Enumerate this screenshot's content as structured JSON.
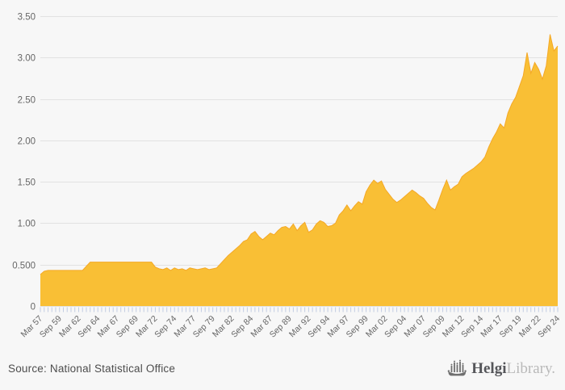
{
  "page": {
    "background": "#f7f7f7"
  },
  "chart_data": {
    "type": "area",
    "title": "",
    "xlabel": "",
    "ylabel": "",
    "grid": true,
    "legend": "none",
    "ylim": [
      0,
      3.5
    ],
    "y_ticks": [
      3.5,
      3.0,
      2.5,
      2.0,
      1.5,
      1.0,
      0.5,
      0
    ],
    "y_tick_labels": [
      "3.50",
      "3.00",
      "2.50",
      "2.00",
      "1.50",
      "1.00",
      "0.500",
      "0"
    ],
    "x_tick_labels": [
      "Mar 57",
      "Sep 59",
      "Mar 62",
      "Sep 64",
      "Mar 67",
      "Sep 69",
      "Mar 72",
      "Sep 74",
      "Mar 77",
      "Sep 79",
      "Mar 82",
      "Sep 84",
      "Mar 87",
      "Sep 89",
      "Mar 92",
      "Sep 94",
      "Mar 97",
      "Sep 99",
      "Mar 02",
      "Sep 04",
      "Mar 07",
      "Sep 09",
      "Mar 12",
      "Sep 14",
      "Mar 17",
      "Sep 19",
      "Mar 22",
      "Sep 24"
    ],
    "x_tick_label_every_n_points": 5,
    "frequency": "semiannual (Mar/Sep)",
    "x_start": "Mar 57",
    "x_end": "Sep 24",
    "series": [
      {
        "name": "value",
        "values": [
          0.38,
          0.42,
          0.43,
          0.43,
          0.43,
          0.43,
          0.43,
          0.43,
          0.43,
          0.43,
          0.43,
          0.43,
          0.48,
          0.53,
          0.53,
          0.53,
          0.53,
          0.53,
          0.53,
          0.53,
          0.53,
          0.53,
          0.53,
          0.53,
          0.53,
          0.53,
          0.53,
          0.53,
          0.53,
          0.53,
          0.47,
          0.45,
          0.44,
          0.46,
          0.43,
          0.46,
          0.44,
          0.45,
          0.43,
          0.46,
          0.45,
          0.44,
          0.45,
          0.46,
          0.44,
          0.45,
          0.46,
          0.51,
          0.56,
          0.61,
          0.65,
          0.69,
          0.73,
          0.78,
          0.8,
          0.87,
          0.9,
          0.84,
          0.8,
          0.84,
          0.88,
          0.86,
          0.91,
          0.95,
          0.96,
          0.93,
          0.99,
          0.91,
          0.97,
          1.01,
          0.89,
          0.92,
          0.99,
          1.03,
          1.01,
          0.96,
          0.97,
          1.0,
          1.1,
          1.15,
          1.22,
          1.15,
          1.21,
          1.26,
          1.23,
          1.38,
          1.46,
          1.52,
          1.48,
          1.51,
          1.41,
          1.35,
          1.29,
          1.25,
          1.28,
          1.32,
          1.36,
          1.4,
          1.37,
          1.33,
          1.3,
          1.24,
          1.19,
          1.16,
          1.28,
          1.41,
          1.52,
          1.4,
          1.44,
          1.47,
          1.56,
          1.6,
          1.63,
          1.66,
          1.7,
          1.74,
          1.8,
          1.92,
          2.02,
          2.1,
          2.2,
          2.15,
          2.33,
          2.44,
          2.52,
          2.65,
          2.78,
          3.06,
          2.81,
          2.94,
          2.86,
          2.74,
          2.9,
          3.28,
          3.08,
          3.14
        ]
      }
    ],
    "colors": {
      "area_fill": "#f9bf35",
      "area_line": "#f4a826",
      "gridline": "#e2e2e2",
      "tick_mark": "#c3cde2",
      "axis_label": "#666666",
      "plot_background": "#f7f7f7"
    }
  },
  "footer": {
    "source_text": "Source: National Statistical Office",
    "brand": {
      "icon": "viking-ship-icon",
      "name_bold": "Helgi",
      "name_light": "Library."
    }
  }
}
